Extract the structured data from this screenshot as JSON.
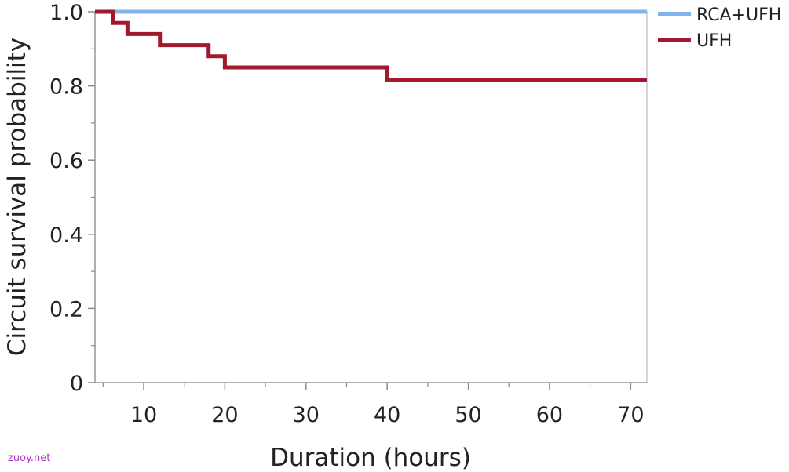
{
  "chart_data": {
    "type": "line",
    "step": true,
    "title": "",
    "xlabel": "Duration (hours)",
    "ylabel": "Circuit survival probability",
    "xlim": [
      4,
      72
    ],
    "ylim": [
      0,
      1
    ],
    "x_ticks": [
      10,
      20,
      30,
      40,
      50,
      60,
      70
    ],
    "x_tick_labels": [
      "10",
      "20",
      "30",
      "40",
      "50",
      "60",
      "70"
    ],
    "y_ticks": [
      0,
      0.2,
      0.4,
      0.6,
      0.8,
      1.0
    ],
    "y_tick_labels": [
      "0",
      "0.2",
      "0.4",
      "0.6",
      "0.8",
      "1.0"
    ],
    "grid": false,
    "legend_position": "top-right-outside",
    "series": [
      {
        "name": "RCA+UFH",
        "color": "#7fb5ea",
        "x": [
          4,
          72
        ],
        "y": [
          1.0,
          1.0
        ]
      },
      {
        "name": "UFH",
        "color": "#a2182d",
        "x": [
          4,
          6.2,
          8,
          12,
          18,
          20,
          40,
          72
        ],
        "y": [
          1.0,
          0.97,
          0.94,
          0.91,
          0.88,
          0.85,
          0.815,
          0.815
        ]
      }
    ]
  },
  "watermark": "zuoy.net"
}
